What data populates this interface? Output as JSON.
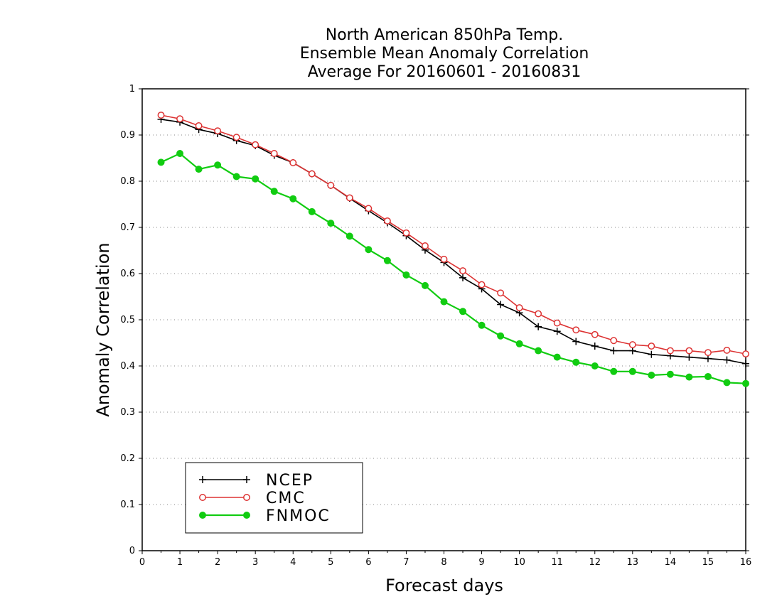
{
  "chart_data": {
    "type": "line",
    "title": [
      "North American 850hPa Temp.",
      "Ensemble Mean Anomaly Correlation",
      "Average For 20160601 - 20160831"
    ],
    "xlabel": "Forecast days",
    "ylabel": "Anomaly Correlation",
    "xlim": [
      0,
      16
    ],
    "ylim": [
      0,
      1
    ],
    "x_ticks": [
      "0",
      "1",
      "2",
      "3",
      "4",
      "5",
      "6",
      "7",
      "8",
      "9",
      "10",
      "11",
      "12",
      "13",
      "14",
      "15",
      "16"
    ],
    "y_ticks": [
      "0",
      "0.1",
      "0.2",
      "0.3",
      "0.4",
      "0.5",
      "0.6",
      "0.7",
      "0.8",
      "0.9",
      "1"
    ],
    "grid": "horizontal-dotted",
    "legend_position": "bottom-left",
    "x": [
      0.5,
      1,
      1.5,
      2,
      2.5,
      3,
      3.5,
      4,
      4.5,
      5,
      5.5,
      6,
      6.5,
      7,
      7.5,
      8,
      8.5,
      9,
      9.5,
      10,
      10.5,
      11,
      11.5,
      12,
      12.5,
      13,
      13.5,
      14,
      14.5,
      15,
      15.5,
      16
    ],
    "series": [
      {
        "name": "NCEP",
        "color": "#000000",
        "marker": "plus",
        "values": [
          0.934,
          0.928,
          0.912,
          0.903,
          0.888,
          0.877,
          0.856,
          0.84,
          0.816,
          0.791,
          0.763,
          0.736,
          0.71,
          0.682,
          0.651,
          0.624,
          0.591,
          0.567,
          0.533,
          0.515,
          0.485,
          0.475,
          0.453,
          0.443,
          0.433,
          0.433,
          0.425,
          0.422,
          0.419,
          0.416,
          0.413,
          0.405
        ]
      },
      {
        "name": "CMC",
        "color": "#dd3333",
        "marker": "open-circle",
        "values": [
          0.943,
          0.935,
          0.92,
          0.909,
          0.895,
          0.879,
          0.86,
          0.84,
          0.816,
          0.791,
          0.764,
          0.741,
          0.714,
          0.688,
          0.66,
          0.631,
          0.606,
          0.576,
          0.558,
          0.526,
          0.513,
          0.493,
          0.478,
          0.468,
          0.455,
          0.446,
          0.443,
          0.433,
          0.433,
          0.429,
          0.434,
          0.426
        ]
      },
      {
        "name": "FNMOC",
        "color": "#11cc11",
        "marker": "filled-circle",
        "values": [
          0.841,
          0.86,
          0.826,
          0.835,
          0.81,
          0.805,
          0.778,
          0.762,
          0.734,
          0.709,
          0.681,
          0.652,
          0.628,
          0.597,
          0.574,
          0.539,
          0.518,
          0.488,
          0.465,
          0.448,
          0.433,
          0.419,
          0.408,
          0.4,
          0.388,
          0.388,
          0.38,
          0.382,
          0.376,
          0.377,
          0.364,
          0.362
        ]
      }
    ]
  }
}
